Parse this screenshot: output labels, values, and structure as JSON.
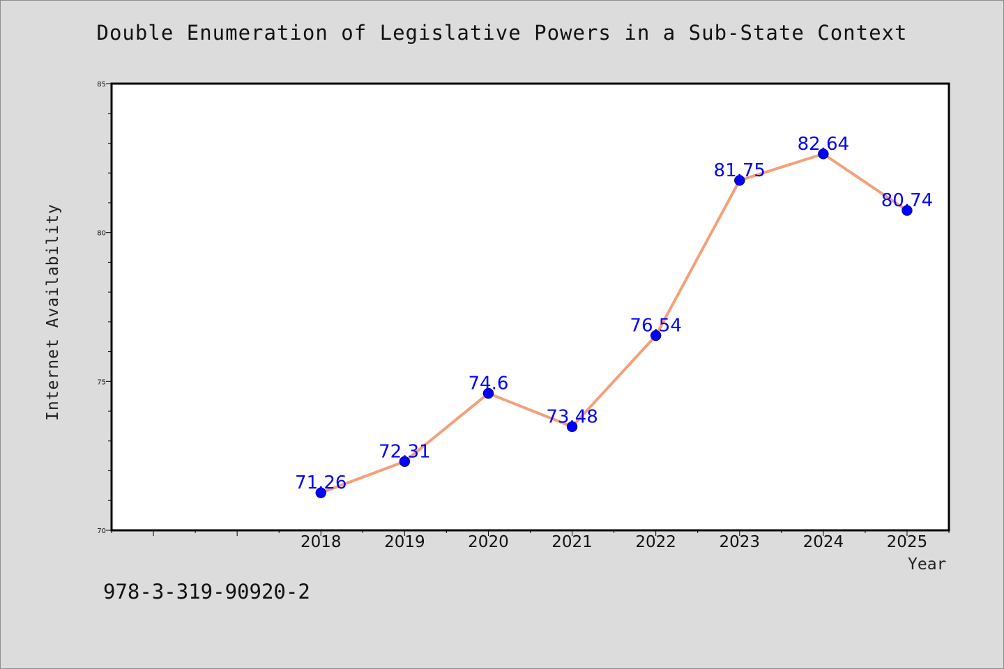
{
  "title": "Double Enumeration of Legislative Powers in a Sub-State Context",
  "footer_text": "978-3-319-90920-2",
  "colors": {
    "background": "#dcdcdc",
    "plot_background": "#ffffff",
    "line": "#f4a07a",
    "marker": "#0000ff",
    "data_label": "#0000ff"
  },
  "chart_data": {
    "type": "line",
    "title": "Double Enumeration of Legislative Powers in a Sub-State Context",
    "xlabel": "Year",
    "ylabel": "Internet Availability",
    "x": [
      2018,
      2019,
      2020,
      2021,
      2022,
      2023,
      2024,
      2025
    ],
    "x_tick_labels": [
      "2018",
      "2019",
      "2020",
      "2021",
      "2022",
      "2023",
      "2024",
      "2025"
    ],
    "xlim": [
      2015.5,
      2025.5
    ],
    "ylim": [
      70,
      85
    ],
    "y_ticks": [
      70,
      75,
      80,
      85
    ],
    "y_tick_labels": [
      "70",
      "75",
      "80",
      "85"
    ],
    "series": [
      {
        "values": [
          71.26,
          72.31,
          74.6,
          73.48,
          76.54,
          81.75,
          82.64,
          80.74
        ],
        "data_labels": [
          "71.26",
          "72.31",
          "74.6",
          "73.48",
          "76.54",
          "81.75",
          "82.64",
          "80.74"
        ]
      }
    ],
    "grid": false,
    "legend": "none"
  }
}
